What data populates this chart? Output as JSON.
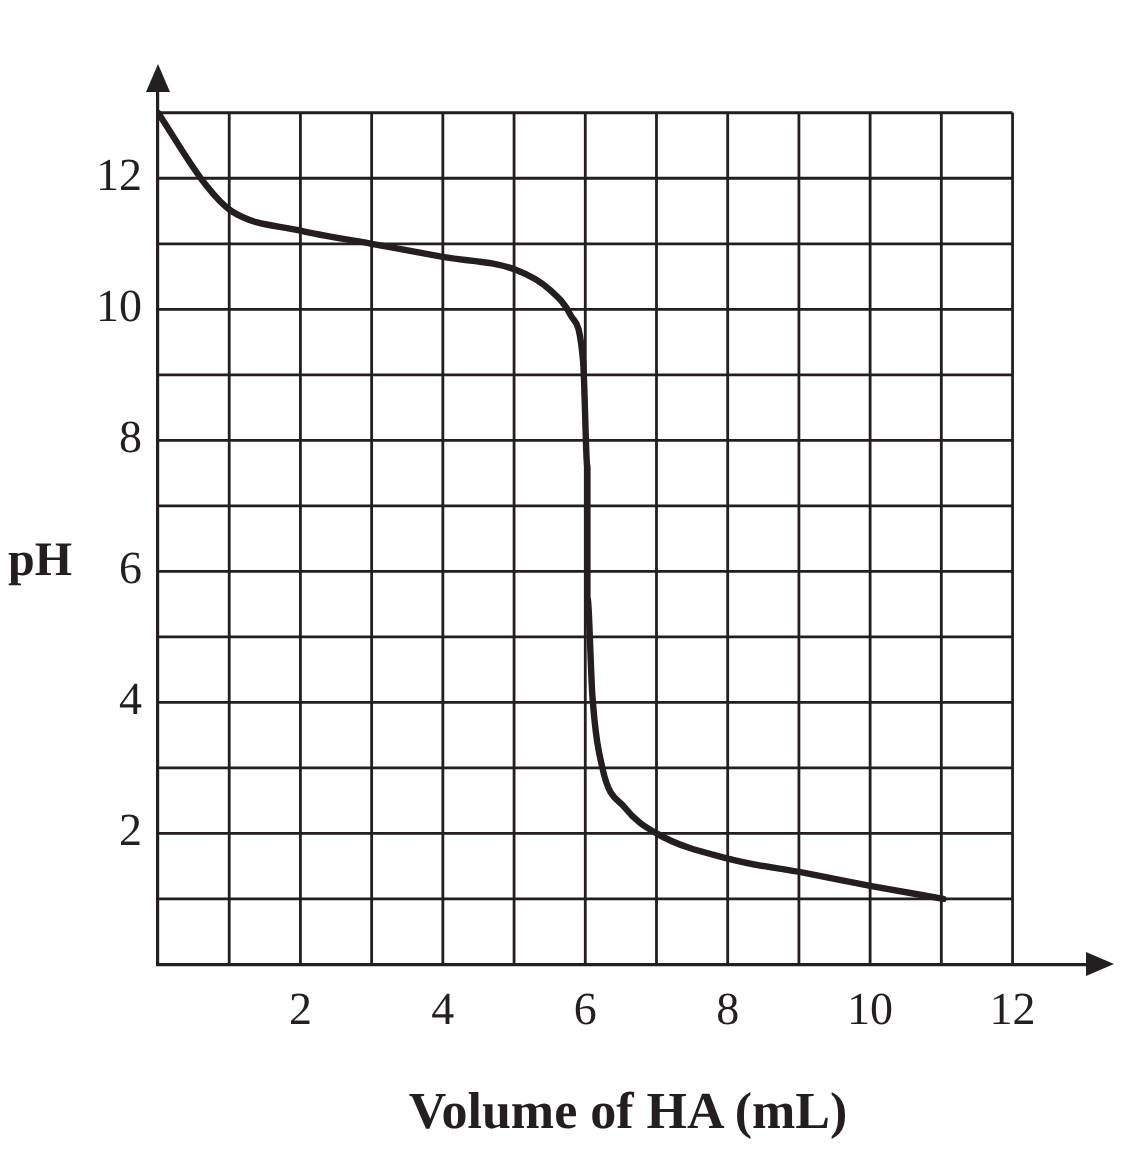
{
  "chart_data": {
    "type": "line",
    "xlabel": "Volume of HA (mL)",
    "ylabel": "pH",
    "xlim": [
      0,
      13.2
    ],
    "ylim": [
      0,
      13.5
    ],
    "xticks": [
      {
        "value": 1,
        "label": null
      },
      2,
      {
        "value": 3,
        "label": null
      },
      4,
      {
        "value": 5,
        "label": null
      },
      6,
      {
        "value": 7,
        "label": null
      },
      8,
      {
        "value": 9,
        "label": null
      },
      10,
      {
        "value": 11,
        "label": null
      },
      12
    ],
    "yticks": [
      {
        "value": 1,
        "label": null
      },
      2,
      {
        "value": 3,
        "label": null
      },
      4,
      {
        "value": 5,
        "label": null
      },
      6,
      {
        "value": 7,
        "label": null
      },
      8,
      {
        "value": 9,
        "label": null
      },
      10,
      {
        "value": 11,
        "label": null
      },
      12,
      {
        "value": 13,
        "label": null
      }
    ],
    "grid": true,
    "legend": false,
    "marker": "none",
    "line_style": "solid",
    "series": [
      {
        "color": "#231f20",
        "x": [
          0,
          0.67,
          1.03,
          2,
          3,
          4,
          5.03,
          5.5,
          5.8,
          5.97,
          6.03,
          6.03,
          6.1,
          6.24,
          6.55,
          7,
          8.06,
          9.06,
          10,
          11.03
        ],
        "values": [
          13,
          11.9,
          11.5,
          11.2,
          11,
          10.8,
          10.6,
          10.3,
          9.9,
          9.2,
          7.6,
          5.6,
          4.1,
          3,
          2.4,
          2,
          1.6,
          1.4,
          1.2,
          1
        ]
      }
    ]
  }
}
